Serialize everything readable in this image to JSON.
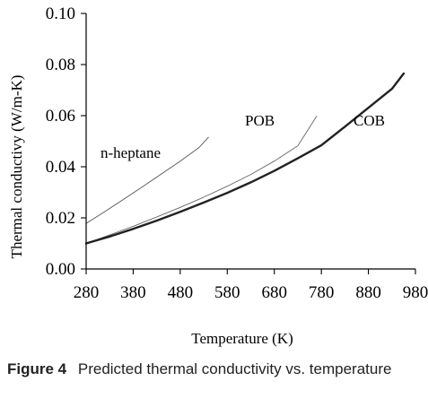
{
  "chart_data": {
    "type": "line",
    "xlabel": "Temperature (K)",
    "ylabel": "Thermal conductivy (W/m-K)",
    "xlim": [
      280,
      980
    ],
    "ylim": [
      0,
      0.1
    ],
    "x_ticks": [
      280,
      380,
      480,
      580,
      680,
      780,
      880,
      980
    ],
    "x_tick_labels": [
      "280",
      "380",
      "480",
      "580",
      "680",
      "780",
      "880",
      "980"
    ],
    "y_ticks": [
      0,
      0.02,
      0.04,
      0.06,
      0.08,
      0.1
    ],
    "y_tick_labels": [
      "0.00",
      "0.02",
      "0.04",
      "0.06",
      "0.08",
      "0.10"
    ],
    "grid": false,
    "series": [
      {
        "name": "n-heptane",
        "color": "#555555",
        "x": [
          280,
          320,
          360,
          400,
          440,
          480,
          520,
          540
        ],
        "y": [
          0.0178,
          0.0225,
          0.0273,
          0.0322,
          0.0372,
          0.0422,
          0.0475,
          0.0515
        ]
      },
      {
        "name": "POB",
        "color": "#666666",
        "x": [
          280,
          330,
          380,
          430,
          480,
          530,
          580,
          630,
          680,
          730,
          770
        ],
        "y": [
          0.01,
          0.0133,
          0.0167,
          0.0203,
          0.0241,
          0.0281,
          0.0324,
          0.037,
          0.0422,
          0.0482,
          0.0598
        ]
      },
      {
        "name": "COB",
        "color": "#222222",
        "x": [
          280,
          330,
          380,
          430,
          480,
          530,
          580,
          630,
          680,
          730,
          780,
          830,
          880,
          930,
          955
        ],
        "y": [
          0.01,
          0.0127,
          0.0157,
          0.0189,
          0.0224,
          0.026,
          0.0298,
          0.0339,
          0.0384,
          0.0433,
          0.0484,
          0.0557,
          0.0631,
          0.0705,
          0.0765
        ]
      }
    ]
  },
  "caption": {
    "label": "Figure   4",
    "text": "Predicted  thermal  conductivity  vs. temperature"
  }
}
